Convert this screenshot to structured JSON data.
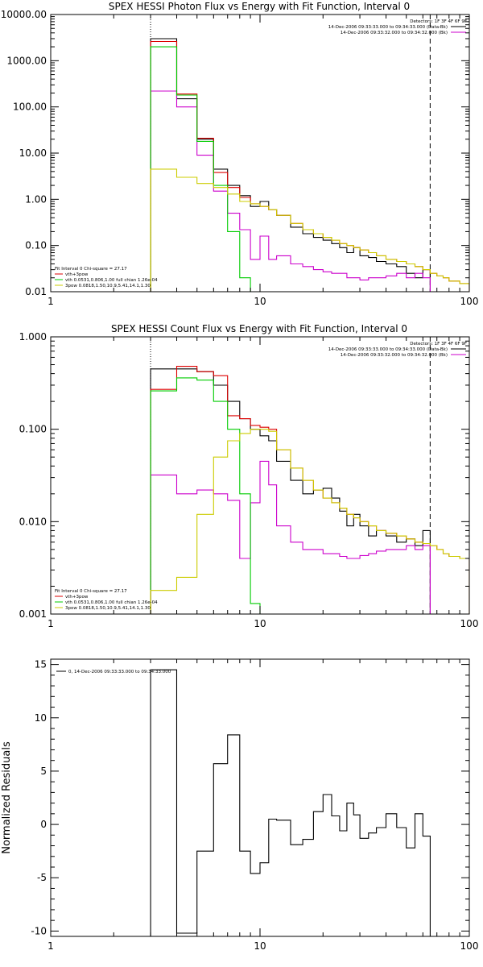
{
  "chart_data": [
    {
      "type": "line",
      "title": "SPEX HESSI Photon Flux vs Energy with Fit Function, Interval 0",
      "xscale": "log",
      "yscale": "log",
      "xlim": [
        1,
        100
      ],
      "ylim": [
        0.01,
        10000
      ],
      "x_ticks": [
        "1",
        "10",
        "100"
      ],
      "y_ticks": [
        "0.01",
        "0.10",
        "1.00",
        "10.00",
        "100.00",
        "1000.00",
        "10000.00"
      ],
      "vlines": [
        {
          "x": 3,
          "style": "dotted"
        },
        {
          "x": 65,
          "style": "dashed"
        }
      ],
      "legend_top_right": {
        "header": "Detectors: 1F 3F 4F 6F 9F",
        "entries": [
          {
            "text": "14-Dec-2006 09:33:33.000 to 09:34:33.000 (Data-Bk)",
            "color": "#000000"
          },
          {
            "text": "14-Dec-2006 09:33:32.000 to 09:34:32.000 (Bk)",
            "color": "#cc00cc"
          }
        ]
      },
      "legend_bottom_left": {
        "header": "Fit Interval 0   Chi-square = 27.17",
        "entries": [
          {
            "text": "vth+3pow",
            "color": "#dd0000"
          },
          {
            "text": "vth 0.0531,0.806,1.00  full chian 1.26e-04",
            "color": "#00cc00"
          },
          {
            "text": "3pow 0.0818,1.50,10.9,5.41,14.1,1.30",
            "color": "#cccc00"
          }
        ]
      },
      "bin_edges": [
        3,
        4,
        5,
        6,
        7,
        8,
        9,
        10,
        11,
        12,
        14,
        16,
        18,
        20,
        22,
        24,
        26,
        28,
        30,
        33,
        36,
        40,
        45,
        50,
        55,
        60,
        65,
        70,
        75,
        80,
        90,
        100
      ],
      "series": [
        {
          "name": "Data-Bk",
          "color": "#000000",
          "values": [
            3000,
            150,
            20,
            4.5,
            2.0,
            1.2,
            0.7,
            0.9,
            0.6,
            0.45,
            0.25,
            0.18,
            0.15,
            0.13,
            0.11,
            0.09,
            0.07,
            0.09,
            0.06,
            0.055,
            0.045,
            0.04,
            0.035,
            0.025,
            0.02,
            0.03
          ]
        },
        {
          "name": "Bk",
          "color": "#cc00cc",
          "values": [
            220,
            100,
            9,
            1.5,
            0.5,
            0.22,
            0.05,
            0.16,
            0.05,
            0.06,
            0.04,
            0.035,
            0.03,
            0.027,
            0.025,
            0.025,
            0.02,
            0.02,
            0.018,
            0.02,
            0.02,
            0.022,
            0.025,
            0.02,
            0.025,
            0.02
          ]
        },
        {
          "name": "vth+3pow",
          "color": "#dd0000",
          "values": [
            2600,
            190,
            21,
            3.8,
            1.8,
            1.1,
            0.8,
            0.7,
            0.6,
            0.45,
            0.3,
            0.22,
            0.18,
            0.15,
            0.13,
            0.11,
            0.1,
            0.09,
            0.08,
            0.07,
            0.06,
            0.05,
            0.045,
            0.04,
            0.035,
            0.03,
            0.025,
            0.022,
            0.02,
            0.017,
            0.015
          ]
        },
        {
          "name": "vth",
          "color": "#00cc00",
          "values": [
            2000,
            180,
            18,
            2.0,
            0.2,
            0.02,
            0.001
          ]
        },
        {
          "name": "3pow",
          "color": "#cccc00",
          "values": [
            4.5,
            3.0,
            2.2,
            1.8,
            1.3,
            0.9,
            0.8,
            0.7,
            0.6,
            0.45,
            0.3,
            0.22,
            0.18,
            0.15,
            0.13,
            0.11,
            0.1,
            0.09,
            0.08,
            0.07,
            0.06,
            0.05,
            0.045,
            0.04,
            0.035,
            0.03,
            0.025,
            0.022,
            0.02,
            0.017,
            0.015
          ]
        }
      ]
    },
    {
      "type": "line",
      "title": "SPEX HESSI Count Flux vs Energy with Fit Function, Interval 0",
      "xscale": "log",
      "yscale": "log",
      "xlim": [
        1,
        100
      ],
      "ylim": [
        0.001,
        1
      ],
      "x_ticks": [
        "1",
        "10",
        "100"
      ],
      "y_ticks": [
        "0.001",
        "0.010",
        "0.100",
        "1.000"
      ],
      "vlines": [
        {
          "x": 3,
          "style": "dotted"
        },
        {
          "x": 65,
          "style": "dashed"
        }
      ],
      "legend_top_right": {
        "header": "Detectors: 1F 3F 4F 6F 9F",
        "entries": [
          {
            "text": "14-Dec-2006 09:33:33.000 to 09:34:33.000 (Data-Bk)",
            "color": "#000000"
          },
          {
            "text": "14-Dec-2006 09:33:32.000 to 09:34:32.000 (Bk)",
            "color": "#cc00cc"
          }
        ]
      },
      "legend_bottom_left": {
        "header": "Fit Interval 0   Chi-square = 27.17",
        "entries": [
          {
            "text": "vth+3pow",
            "color": "#dd0000"
          },
          {
            "text": "vth 0.0531,0.806,1.00  full chian 1.26e-04",
            "color": "#00cc00"
          },
          {
            "text": "3pow 0.0818,1.50,10.9,5.41,14.1,1.30",
            "color": "#cccc00"
          }
        ]
      },
      "bin_edges": [
        3,
        4,
        5,
        6,
        7,
        8,
        9,
        10,
        11,
        12,
        14,
        16,
        18,
        20,
        22,
        24,
        26,
        28,
        30,
        33,
        36,
        40,
        45,
        50,
        55,
        60,
        65,
        70,
        75,
        80,
        90,
        100
      ],
      "series": [
        {
          "name": "Data-Bk",
          "color": "#000000",
          "values": [
            0.45,
            0.45,
            0.42,
            0.3,
            0.2,
            0.13,
            0.1,
            0.085,
            0.075,
            0.045,
            0.028,
            0.02,
            0.022,
            0.023,
            0.018,
            0.013,
            0.009,
            0.012,
            0.009,
            0.007,
            0.008,
            0.007,
            0.006,
            0.0065,
            0.0055,
            0.008
          ]
        },
        {
          "name": "Bk",
          "color": "#cc00cc",
          "values": [
            0.032,
            0.02,
            0.022,
            0.02,
            0.017,
            0.004,
            0.016,
            0.045,
            0.025,
            0.009,
            0.006,
            0.005,
            0.005,
            0.0045,
            0.0045,
            0.0042,
            0.004,
            0.004,
            0.0043,
            0.0045,
            0.0048,
            0.005,
            0.005,
            0.0055,
            0.005,
            0.0055
          ]
        },
        {
          "name": "vth+3pow",
          "color": "#dd0000",
          "values": [
            0.27,
            0.48,
            0.42,
            0.38,
            0.14,
            0.13,
            0.11,
            0.105,
            0.1,
            0.06,
            0.038,
            0.028,
            0.022,
            0.018,
            0.016,
            0.014,
            0.012,
            0.011,
            0.01,
            0.009,
            0.008,
            0.0075,
            0.007,
            0.0065,
            0.006,
            0.0058,
            0.0055,
            0.005,
            0.0045,
            0.0042,
            0.004
          ]
        },
        {
          "name": "vth",
          "color": "#00cc00",
          "values": [
            0.26,
            0.36,
            0.34,
            0.2,
            0.1,
            0.02,
            0.0013
          ]
        },
        {
          "name": "3pow",
          "color": "#cccc00",
          "values": [
            0.0018,
            0.0025,
            0.012,
            0.05,
            0.075,
            0.09,
            0.1,
            0.1,
            0.095,
            0.06,
            0.038,
            0.028,
            0.022,
            0.018,
            0.016,
            0.014,
            0.012,
            0.011,
            0.01,
            0.009,
            0.008,
            0.0075,
            0.007,
            0.0065,
            0.006,
            0.0058,
            0.0055,
            0.005,
            0.0045,
            0.0042,
            0.004
          ]
        }
      ]
    },
    {
      "type": "line",
      "title": "",
      "xscale": "log",
      "yscale": "linear",
      "xlim": [
        1,
        100
      ],
      "ylim": [
        -10.5,
        15.5
      ],
      "ylabel": "Normalized Residuals",
      "x_ticks": [
        "1",
        "10",
        "100"
      ],
      "y_ticks": [
        "-10",
        "-5",
        "0",
        "5",
        "10",
        "15"
      ],
      "legend_top_left": {
        "entries": [
          {
            "text": "0, 14-Dec-2006 09:33:33.000 to 09:34:33.000",
            "color": "#000000"
          }
        ]
      },
      "bin_edges": [
        3,
        4,
        5,
        6,
        7,
        8,
        9,
        10,
        11,
        12,
        14,
        16,
        18,
        20,
        22,
        24,
        26,
        28,
        30,
        33,
        36,
        40,
        45,
        50,
        55,
        60,
        65
      ],
      "series": [
        {
          "name": "",
          "color": "#000000",
          "values": [
            14.5,
            -10.2,
            -2.5,
            5.7,
            8.4,
            -2.5,
            -4.6,
            -3.6,
            0.5,
            0.4,
            -1.9,
            -1.4,
            1.2,
            2.8,
            0.8,
            -0.6,
            2.0,
            0.9,
            -1.3,
            -0.8,
            -0.3,
            1.0,
            -0.3,
            -2.2,
            1.0,
            -1.1
          ]
        }
      ]
    }
  ]
}
